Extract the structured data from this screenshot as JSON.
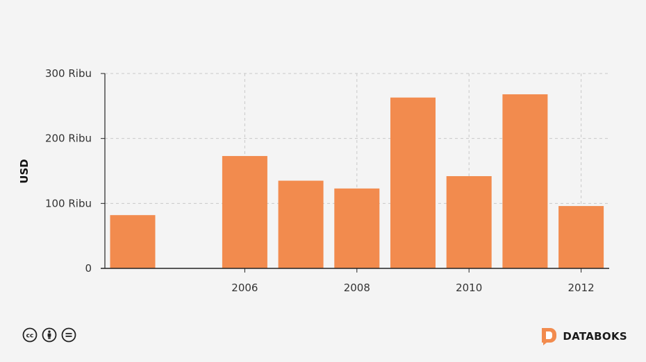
{
  "chart_data": {
    "type": "bar",
    "categories": [
      "2004",
      "2005",
      "2006",
      "2007",
      "2008",
      "2009",
      "2010",
      "2011",
      "2012"
    ],
    "values": [
      82000,
      0,
      173000,
      135000,
      123000,
      263000,
      142000,
      268000,
      96000
    ],
    "x_tick_labels": [
      "2006",
      "2008",
      "2010",
      "2012"
    ],
    "y_ticks": [
      0,
      100000,
      200000,
      300000
    ],
    "y_tick_labels": [
      "0",
      "100 Ribu",
      "200 Ribu",
      "300 Ribu"
    ],
    "ylabel": "USD",
    "xlabel": "",
    "title": "",
    "ylim": [
      0,
      300000
    ],
    "grid": true,
    "bar_color": "#f28b4e"
  },
  "footer": {
    "brand_name": "DATABOKS",
    "icons": [
      "cc-icon",
      "by-icon",
      "nd-icon"
    ],
    "brand_color": "#f28b4e"
  }
}
